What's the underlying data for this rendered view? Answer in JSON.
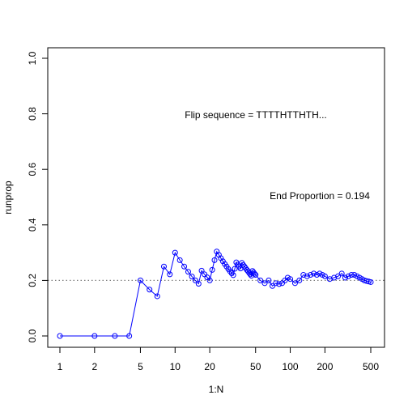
{
  "chart_data": {
    "type": "line",
    "x_scale": "log",
    "xlabel": "1:N",
    "ylabel": "runprop",
    "xlim": [
      1,
      500
    ],
    "ylim": [
      0,
      1
    ],
    "x_ticks": [
      {
        "value": 1,
        "label": "1"
      },
      {
        "value": 2,
        "label": "2"
      },
      {
        "value": 5,
        "label": "5"
      },
      {
        "value": 10,
        "label": "10"
      },
      {
        "value": 20,
        "label": "20"
      },
      {
        "value": 50,
        "label": "50"
      },
      {
        "value": 100,
        "label": "100"
      },
      {
        "value": 200,
        "label": "200"
      },
      {
        "value": 500,
        "label": "500"
      }
    ],
    "y_ticks": [
      {
        "value": 0.0,
        "label": "0.0"
      },
      {
        "value": 0.2,
        "label": "0.2"
      },
      {
        "value": 0.4,
        "label": "0.4"
      },
      {
        "value": 0.6,
        "label": "0.6"
      },
      {
        "value": 0.8,
        "label": "0.8"
      },
      {
        "value": 1.0,
        "label": "1.0"
      }
    ],
    "reference_line": {
      "y": 0.2,
      "style": "dotted",
      "color": "#808080"
    },
    "series_color": "#0000ff",
    "marker": "open-circle",
    "series": [
      {
        "x": [
          1,
          2,
          3,
          4,
          5,
          6,
          7,
          8,
          9,
          10,
          11,
          12,
          13,
          14,
          15,
          16,
          17,
          18,
          19,
          20,
          21,
          22,
          23,
          24,
          25,
          26,
          27,
          28,
          29,
          30,
          31,
          32,
          33,
          34,
          35,
          36,
          37,
          38,
          39,
          40,
          41,
          42,
          43,
          44,
          45,
          46,
          47,
          48,
          49,
          50,
          55,
          60,
          65,
          70,
          75,
          80,
          85,
          90,
          95,
          100,
          110,
          120,
          130,
          140,
          150,
          160,
          170,
          180,
          190,
          200,
          220,
          240,
          260,
          280,
          300,
          320,
          340,
          360,
          380,
          400,
          420,
          440,
          460,
          480,
          500
        ],
        "y": [
          0,
          0,
          0,
          0,
          0.2,
          0.167,
          0.143,
          0.25,
          0.222,
          0.3,
          0.273,
          0.25,
          0.231,
          0.214,
          0.2,
          0.188,
          0.235,
          0.222,
          0.211,
          0.2,
          0.238,
          0.273,
          0.304,
          0.292,
          0.28,
          0.269,
          0.259,
          0.25,
          0.241,
          0.233,
          0.226,
          0.219,
          0.242,
          0.265,
          0.257,
          0.25,
          0.243,
          0.263,
          0.256,
          0.25,
          0.244,
          0.238,
          0.233,
          0.227,
          0.222,
          0.217,
          0.234,
          0.229,
          0.224,
          0.22,
          0.2,
          0.19,
          0.2,
          0.18,
          0.19,
          0.187,
          0.19,
          0.2,
          0.21,
          0.205,
          0.19,
          0.2,
          0.22,
          0.215,
          0.22,
          0.225,
          0.22,
          0.225,
          0.22,
          0.215,
          0.205,
          0.21,
          0.215,
          0.225,
          0.21,
          0.215,
          0.22,
          0.22,
          0.215,
          0.21,
          0.205,
          0.2,
          0.198,
          0.196,
          0.194
        ]
      }
    ],
    "annotations": {
      "flip_sequence": "Flip sequence = TTTTHTTHTH...",
      "end_proportion": "End Proportion =  0.194"
    }
  }
}
